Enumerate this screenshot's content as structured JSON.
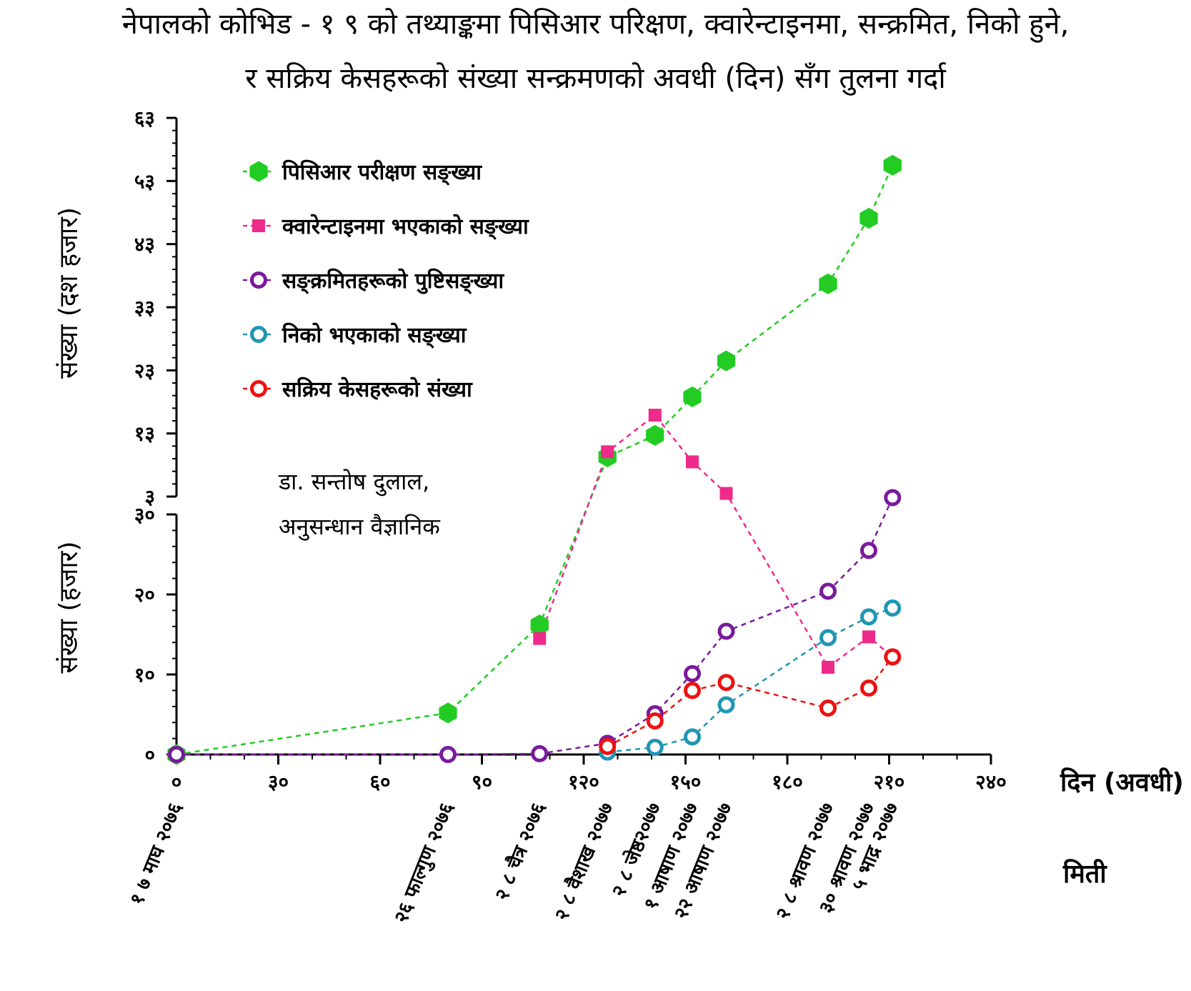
{
  "title_line1": "नेपालको कोभिड - १ ९ को तथ्याङ्कमा पिसिआर परिक्षण, क्वारेन्टाइनमा, सन्क्रमित,  निको हुने,",
  "title_line2": "र सक्रिय केसहरूको संख्या सन्क्रमणको अवधी  (दिन) सँग  तुलना गर्दा",
  "author_line1": "डा. सन्तोष दुलाल,",
  "author_line2": "अनुसन्धान वैज्ञानिक",
  "chart_data": {
    "type": "line",
    "title": "नेपालको कोभिड - १ ९ को तथ्याङ्कमा पिसिआर परिक्षण, क्वारेन्टाइनमा, सन्क्रमित,  निको हुने, र सक्रिय केसहरूको संख्या सन्क्रमणको अवधी  (दिन) सँग  तुलना गर्दा",
    "xlabel": "दिन (अवधी)",
    "x_date_title": "मिती",
    "ylabel_upper": "संख्या (दश हजार)",
    "ylabel_lower": "संख्या (हजार)",
    "broken_y_axis": true,
    "xlim": [
      0,
      240
    ],
    "x_ticks": [
      0,
      30,
      60,
      90,
      120,
      150,
      180,
      210,
      240
    ],
    "x_tick_labels": [
      "०",
      "३०",
      "६०",
      "९०",
      "१२०",
      "१५०",
      "१८०",
      "२१०",
      "२४०"
    ],
    "ylim_lower": [
      0,
      30
    ],
    "y_ticks_lower": [
      0,
      10,
      20,
      30
    ],
    "y_tick_labels_lower": [
      "०",
      "१०",
      "२०",
      "३०"
    ],
    "ylim_upper": [
      3,
      63
    ],
    "y_ticks_upper": [
      3,
      13,
      23,
      33,
      43,
      53,
      63
    ],
    "y_tick_labels_upper": [
      "३",
      "१३",
      "२३",
      "३३",
      "४३",
      "५३",
      "६३"
    ],
    "date_labels": [
      {
        "x": 0,
        "label": "१ ७ माघ २०७६"
      },
      {
        "x": 80,
        "label": "२६ फाल्गुण २०७६"
      },
      {
        "x": 107,
        "label": "२ ८ चैत्र २०७६"
      },
      {
        "x": 127,
        "label": "२ ८ वैशाख २०७७"
      },
      {
        "x": 141,
        "label": "२ ८ जेष्ठ२०७७"
      },
      {
        "x": 152,
        "label": "१ आषाण २०७७"
      },
      {
        "x": 162,
        "label": "२२ आषाण २०७७"
      },
      {
        "x": 192,
        "label": "२ ८ श्रावण २०७७"
      },
      {
        "x": 204,
        "label": "३० श्रावण २०७७"
      },
      {
        "x": 211,
        "label": "५ भाद्र २०७७"
      }
    ],
    "series": [
      {
        "name": "पिसिआर परीक्षण सङ्ख्या",
        "color": "#22cc22",
        "marker": "hexagon",
        "points": [
          [
            0,
            0,
            "lower"
          ],
          [
            80,
            5.2,
            "lower"
          ],
          [
            107,
            16.2,
            "lower"
          ],
          [
            127,
            9.3,
            "upper"
          ],
          [
            141,
            12.7,
            "upper"
          ],
          [
            152,
            18.8,
            "upper"
          ],
          [
            162,
            24.5,
            "upper"
          ],
          [
            192,
            36.7,
            "upper"
          ],
          [
            204,
            47.1,
            "upper"
          ],
          [
            211,
            55.5,
            "upper"
          ]
        ]
      },
      {
        "name": "क्वारेन्टाइनमा भएकाको सङ्ख्या",
        "color": "#ee2a8a",
        "marker": "square",
        "points": [
          [
            107,
            14.5,
            "lower"
          ],
          [
            127,
            10.1,
            "upper"
          ],
          [
            141,
            15.9,
            "upper"
          ],
          [
            152,
            8.5,
            "upper"
          ],
          [
            162,
            3.5,
            "upper"
          ],
          [
            192,
            10.9,
            "lower"
          ],
          [
            204,
            14.7,
            "lower"
          ],
          [
            211,
            12.2,
            "lower"
          ]
        ]
      },
      {
        "name": "सङ्क्रमितहरूको पुष्टिसङ्ख्या",
        "color": "#7a1a9c",
        "marker": "ring",
        "points": [
          [
            0,
            0,
            "lower"
          ],
          [
            80,
            0,
            "lower"
          ],
          [
            107,
            0.1,
            "lower"
          ],
          [
            127,
            1.4,
            "lower"
          ],
          [
            141,
            5.1,
            "lower"
          ],
          [
            152,
            10.1,
            "lower"
          ],
          [
            162,
            15.4,
            "lower"
          ],
          [
            192,
            20.4,
            "lower"
          ],
          [
            204,
            25.5,
            "lower"
          ],
          [
            211,
            32.1,
            "lower"
          ]
        ]
      },
      {
        "name": "निको भएकाको  सङ्ख्या",
        "color": "#1f96b4",
        "marker": "ring",
        "points": [
          [
            127,
            0.3,
            "lower"
          ],
          [
            141,
            0.9,
            "lower"
          ],
          [
            152,
            2.2,
            "lower"
          ],
          [
            162,
            6.2,
            "lower"
          ],
          [
            192,
            14.6,
            "lower"
          ],
          [
            204,
            17.2,
            "lower"
          ],
          [
            211,
            18.3,
            "lower"
          ]
        ]
      },
      {
        "name": "सक्रिय केसहरूको संख्या",
        "color": "#ee1111",
        "marker": "ring",
        "points": [
          [
            127,
            1.0,
            "lower"
          ],
          [
            141,
            4.2,
            "lower"
          ],
          [
            152,
            8.0,
            "lower"
          ],
          [
            162,
            9.0,
            "lower"
          ],
          [
            192,
            5.8,
            "lower"
          ],
          [
            204,
            8.3,
            "lower"
          ],
          [
            211,
            12.2,
            "lower"
          ]
        ]
      }
    ]
  }
}
